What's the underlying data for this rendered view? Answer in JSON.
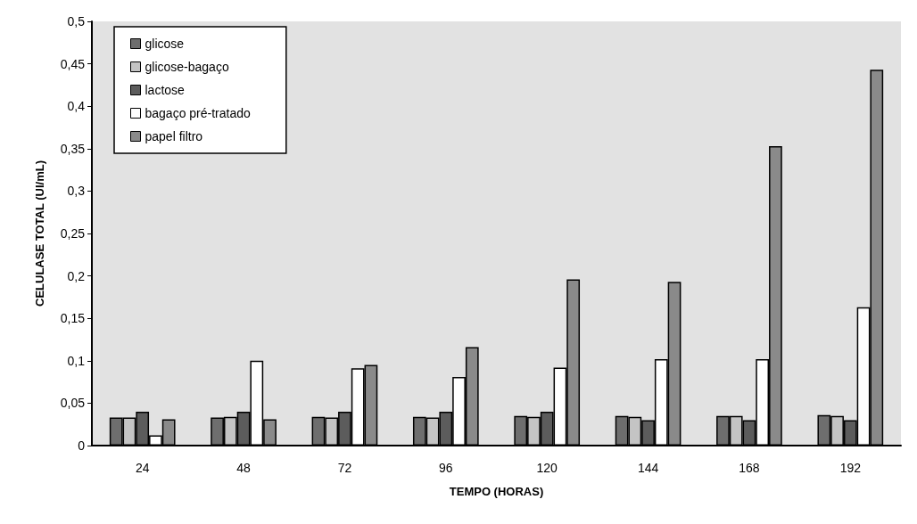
{
  "chart_data": {
    "type": "bar",
    "xlabel": "TEMPO (HORAS)",
    "ylabel": "CELULASE TOTAL (UI/mL)",
    "categories": [
      "24",
      "48",
      "72",
      "96",
      "120",
      "144",
      "168",
      "192"
    ],
    "series": [
      {
        "name": "glicose",
        "color": "#6e6e6e",
        "values": [
          0.033,
          0.033,
          0.034,
          0.034,
          0.035,
          0.035,
          0.035,
          0.036
        ]
      },
      {
        "name": "glicose-bagaço",
        "color": "#c4c4c4",
        "values": [
          0.033,
          0.034,
          0.033,
          0.033,
          0.034,
          0.034,
          0.035,
          0.035
        ]
      },
      {
        "name": "lactose",
        "color": "#5c5c5c",
        "values": [
          0.04,
          0.04,
          0.04,
          0.04,
          0.04,
          0.03,
          0.03,
          0.03
        ]
      },
      {
        "name": "bagaço pré-tratado",
        "color": "#ffffff",
        "values": [
          0.012,
          0.1,
          0.091,
          0.081,
          0.092,
          0.102,
          0.102,
          0.163
        ]
      },
      {
        "name": "papel filtro",
        "color": "#8a8a8a",
        "values": [
          0.031,
          0.031,
          0.095,
          0.116,
          0.196,
          0.193,
          0.353,
          0.443
        ]
      }
    ],
    "ylim": [
      0,
      0.5
    ],
    "yticks": [
      0,
      {
        "value": 0.05,
        "label": "0,05"
      },
      {
        "value": 0.1,
        "label": "0,1"
      },
      {
        "value": 0.15,
        "label": "0,15"
      },
      {
        "value": 0.2,
        "label": "0,2"
      },
      {
        "value": 0.25,
        "label": "0,25"
      },
      {
        "value": 0.3,
        "label": "0,3"
      },
      {
        "value": 0.35,
        "label": "0,35"
      },
      {
        "value": 0.4,
        "label": "0,4"
      },
      {
        "value": 0.45,
        "label": "0,45"
      },
      {
        "value": 0.5,
        "label": "0,5"
      }
    ],
    "grid": false,
    "legend": "top left"
  }
}
